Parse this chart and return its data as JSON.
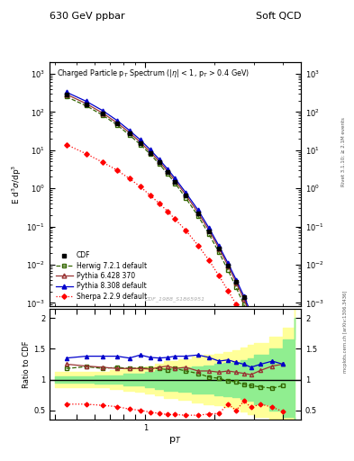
{
  "title_left": "630 GeV ppbar",
  "title_right": "Soft QCD",
  "plot_title": "Charged Particle p$_{T}$ Spectrum (|\\eta| < 1, p$_{T}$ > 0.4 GeV)",
  "xlabel": "p_T",
  "ylabel_top": "E d$^{3}\\sigma$/dp$^{3}$",
  "ylabel_bottom": "Ratio to CDF",
  "watermark": "CDF_1988_S1865951",
  "pt_data": [
    0.45,
    0.55,
    0.65,
    0.75,
    0.85,
    0.95,
    1.05,
    1.15,
    1.25,
    1.35,
    1.5,
    1.7,
    1.9,
    2.1,
    2.3,
    2.5,
    2.7,
    2.9,
    3.2,
    3.6,
    4.0
  ],
  "cdf_data": [
    280,
    160,
    90,
    50,
    28,
    15.0,
    8.5,
    4.8,
    2.7,
    1.5,
    0.65,
    0.22,
    0.075,
    0.027,
    0.0095,
    0.0036,
    0.0014,
    0.00055,
    0.00016,
    3.5e-05,
    8e-06
  ],
  "herwig_data": [
    250,
    145,
    82,
    46,
    25,
    14.0,
    7.8,
    4.3,
    2.4,
    1.35,
    0.56,
    0.19,
    0.062,
    0.021,
    0.0072,
    0.0025,
    0.0009,
    0.00032,
    8.5e-05,
    1.6e-05,
    3.5e-06
  ],
  "pythia6_data": [
    290,
    165,
    93,
    52,
    29,
    16.0,
    8.9,
    5.0,
    2.8,
    1.58,
    0.68,
    0.23,
    0.078,
    0.027,
    0.0094,
    0.0034,
    0.00125,
    0.00045,
    0.00013,
    2.8e-05,
    6.5e-06
  ],
  "pythia8_data": [
    330,
    190,
    108,
    60,
    33,
    18.5,
    10.2,
    5.7,
    3.2,
    1.8,
    0.78,
    0.27,
    0.091,
    0.031,
    0.011,
    0.004,
    0.0015,
    0.00055,
    0.00016,
    3.5e-05,
    8e-06
  ],
  "sherpa_data": [
    14,
    8,
    4.8,
    3.0,
    1.8,
    1.1,
    0.65,
    0.4,
    0.25,
    0.155,
    0.08,
    0.032,
    0.013,
    0.0051,
    0.0021,
    0.0009,
    0.00038,
    0.00016,
    5.5e-05,
    1.4e-05,
    3.5e-06
  ],
  "herwig_ratio": [
    1.18,
    1.21,
    1.18,
    1.2,
    1.18,
    1.19,
    1.18,
    1.18,
    1.16,
    1.18,
    1.14,
    1.1,
    1.04,
    1.02,
    0.98,
    0.96,
    0.92,
    0.9,
    0.88,
    0.86,
    0.9
  ],
  "pythia6_ratio": [
    1.25,
    1.22,
    1.2,
    1.18,
    1.18,
    1.18,
    1.17,
    1.2,
    1.22,
    1.18,
    1.2,
    1.14,
    1.14,
    1.12,
    1.14,
    1.12,
    1.1,
    1.08,
    1.15,
    1.22,
    1.25
  ],
  "pythia8_ratio": [
    1.35,
    1.38,
    1.38,
    1.38,
    1.35,
    1.4,
    1.36,
    1.35,
    1.36,
    1.38,
    1.38,
    1.4,
    1.36,
    1.3,
    1.32,
    1.28,
    1.25,
    1.2,
    1.25,
    1.3,
    1.25
  ],
  "sherpa_ratio": [
    0.6,
    0.6,
    0.58,
    0.56,
    0.52,
    0.5,
    0.47,
    0.45,
    0.43,
    0.43,
    0.42,
    0.42,
    0.44,
    0.45,
    0.6,
    0.5,
    0.65,
    0.55,
    0.6,
    0.55,
    0.48
  ],
  "band_pt": [
    0.4,
    0.5,
    0.6,
    0.7,
    0.8,
    0.9,
    1.0,
    1.1,
    1.2,
    1.4,
    1.6,
    1.8,
    2.0,
    2.2,
    2.4,
    2.6,
    2.8,
    3.0,
    3.5,
    4.0,
    4.5
  ],
  "band_ylo": [
    0.95,
    0.95,
    0.94,
    0.93,
    0.91,
    0.9,
    0.88,
    0.85,
    0.82,
    0.8,
    0.78,
    0.77,
    0.75,
    0.73,
    0.72,
    0.68,
    0.65,
    0.6,
    0.5,
    0.4,
    0.3
  ],
  "band_yhi": [
    1.05,
    1.05,
    1.06,
    1.07,
    1.09,
    1.1,
    1.12,
    1.15,
    1.18,
    1.2,
    1.22,
    1.23,
    1.25,
    1.27,
    1.28,
    1.32,
    1.35,
    1.4,
    1.5,
    1.65,
    2.0
  ],
  "band_ylo2": [
    0.88,
    0.88,
    0.87,
    0.85,
    0.82,
    0.8,
    0.78,
    0.74,
    0.7,
    0.67,
    0.63,
    0.6,
    0.58,
    0.55,
    0.52,
    0.48,
    0.44,
    0.4,
    0.32,
    0.25,
    0.18
  ],
  "band_yhi2": [
    1.12,
    1.12,
    1.13,
    1.15,
    1.18,
    1.2,
    1.22,
    1.26,
    1.3,
    1.33,
    1.37,
    1.4,
    1.42,
    1.45,
    1.48,
    1.52,
    1.56,
    1.6,
    1.7,
    1.85,
    2.2
  ],
  "cdf_color": "#000000",
  "herwig_color": "#336600",
  "pythia6_color": "#993333",
  "pythia8_color": "#0000cc",
  "sherpa_color": "#ff0000",
  "band_green": "#90ee90",
  "band_yellow": "#ffff99"
}
